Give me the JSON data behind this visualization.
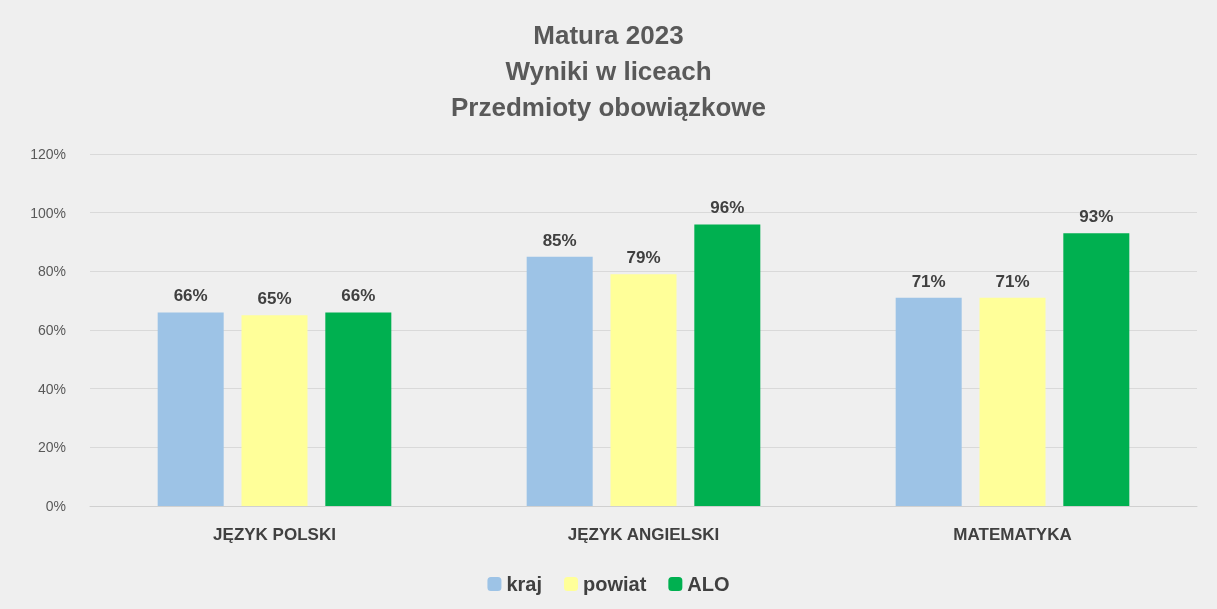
{
  "chart_data": {
    "type": "bar",
    "title": "Matura 2023\nWyniki w liceach\nPrzedmioty obowiązkowe",
    "categories": [
      "JĘZYK POLSKI",
      "JĘZYK ANGIELSKI",
      "MATEMATYKA"
    ],
    "series": [
      {
        "name": "kraj",
        "color": "#9dc3e6",
        "values": [
          66,
          85,
          71
        ],
        "value_labels": [
          "66%",
          "85%",
          "71%"
        ]
      },
      {
        "name": "powiat",
        "color": "#ffff99",
        "values": [
          65,
          79,
          71
        ],
        "value_labels": [
          "65%",
          "79%",
          "71%"
        ]
      },
      {
        "name": "ALO",
        "color": "#00b050",
        "values": [
          66,
          96,
          93
        ],
        "value_labels": [
          "66%",
          "96%",
          "93%"
        ]
      }
    ],
    "ylim": [
      0,
      120
    ],
    "yticks": [
      {
        "value": 0,
        "label": "0%"
      },
      {
        "value": 20,
        "label": "20%"
      },
      {
        "value": 40,
        "label": "40%"
      },
      {
        "value": 60,
        "label": "60%"
      },
      {
        "value": 80,
        "label": "80%"
      },
      {
        "value": 100,
        "label": "100%"
      },
      {
        "value": 120,
        "label": "120%"
      }
    ],
    "grid": "y",
    "legend": "bottom"
  }
}
